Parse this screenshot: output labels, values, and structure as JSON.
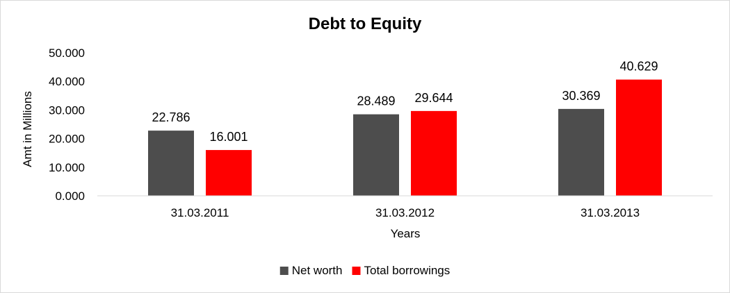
{
  "chart_data": {
    "type": "bar",
    "title": "Debt to Equity",
    "xlabel": "Years",
    "ylabel": "Amt in Millions",
    "categories": [
      "31.03.2011",
      "31.03.2012",
      "31.03.2013"
    ],
    "series": [
      {
        "name": "Net worth",
        "color": "#4d4d4d",
        "values": [
          22.786,
          28.489,
          30.369
        ]
      },
      {
        "name": "Total borrowings",
        "color": "#ff0000",
        "values": [
          16.001,
          29.644,
          40.629
        ]
      }
    ],
    "ylim": [
      0,
      50
    ],
    "yticks": [
      "0.000",
      "10.000",
      "20.000",
      "30.000",
      "40.000",
      "50.000"
    ],
    "data_labels": [
      [
        "22.786",
        "28.489",
        "30.369"
      ],
      [
        "16.001",
        "29.644",
        "40.629"
      ]
    ],
    "grid": false,
    "legend_position": "bottom"
  }
}
